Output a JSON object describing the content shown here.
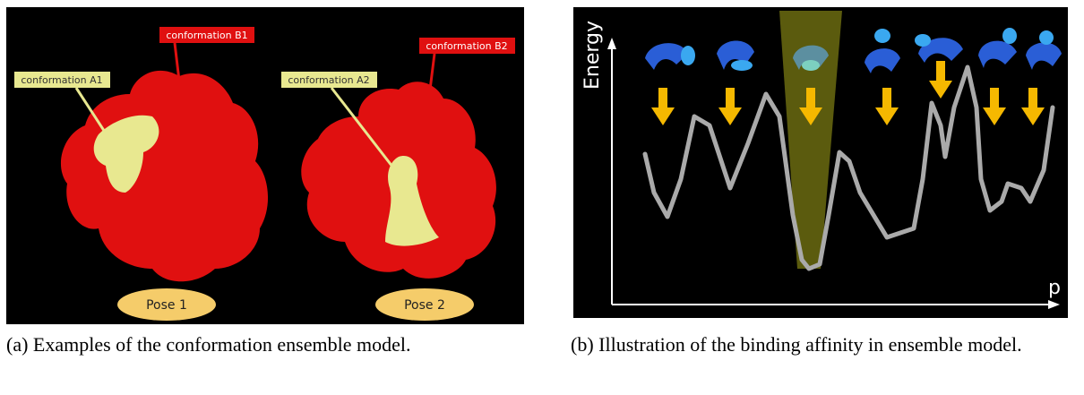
{
  "panel_a": {
    "labels": {
      "b1": "conformation B1",
      "a1": "conformation A1",
      "a2": "conformation A2",
      "b2": "conformation B2"
    },
    "poses": [
      "Pose 1",
      "Pose 2"
    ],
    "caption": "(a) Examples of the conformation ensemble model."
  },
  "panel_b": {
    "y_axis_label": "Energy",
    "x_axis_label": "p",
    "caption": "(b) Illustration of the binding affinity in ensemble model."
  }
}
